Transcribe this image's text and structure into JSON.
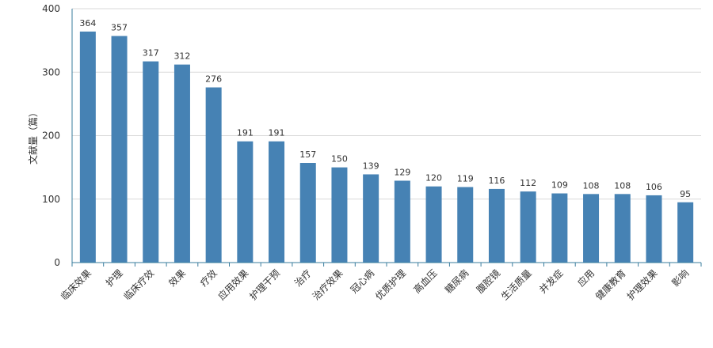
{
  "chart_data": {
    "type": "bar",
    "ylabel": "文献量（篇）",
    "ylim": [
      0,
      400
    ],
    "yticks": [
      0,
      100,
      200,
      300,
      400
    ],
    "grid": true,
    "bar_color": "#4682B4",
    "categories": [
      "临床效果",
      "护理",
      "临床疗效",
      "效果",
      "疗效",
      "应用效果",
      "护理干预",
      "治疗",
      "治疗效果",
      "冠心病",
      "优质护理",
      "高血压",
      "糖尿病",
      "腹腔镜",
      "生活质量",
      "并发症",
      "应用",
      "健康教育",
      "护理效果",
      "影响"
    ],
    "values": [
      364,
      357,
      317,
      312,
      276,
      191,
      191,
      157,
      150,
      139,
      129,
      120,
      119,
      116,
      112,
      109,
      108,
      108,
      106,
      95
    ]
  }
}
